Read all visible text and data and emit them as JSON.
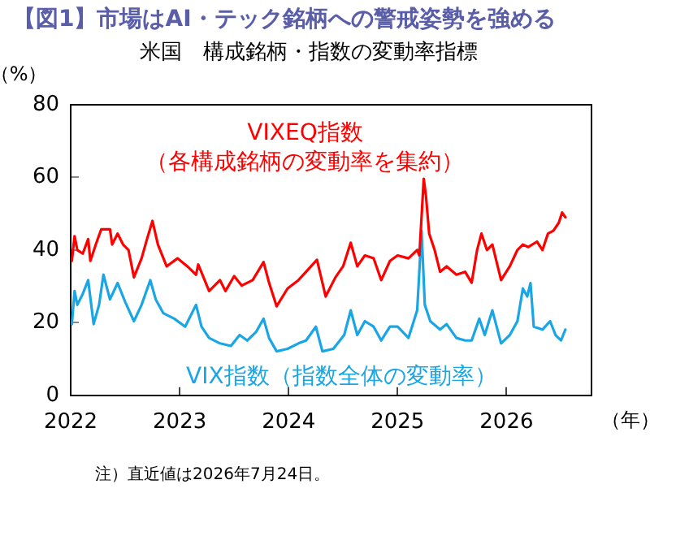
{
  "chart_data": {
    "type": "line",
    "title": "【図1】市場はAI・テック銘柄への警戒姿勢を強める",
    "subtitle": "米国　構成銘柄・指数の変動率指標",
    "ylabel": "（%）",
    "xlabel": "（年）",
    "annotations": [
      "注）直近値は2026年7月24日。"
    ],
    "xlim": [
      2022,
      2026.78
    ],
    "xticks": [
      2022,
      2023,
      2024,
      2025,
      2026
    ],
    "ylim": [
      0,
      80
    ],
    "yticks": [
      0,
      20,
      40,
      60,
      80
    ],
    "grid": false,
    "legend": false,
    "marker": "none",
    "line_style": "solid",
    "series": [
      {
        "name": "VIXEQ指数（各構成銘柄の変動率を集約）",
        "color": "#ff0000",
        "x": [
          2022.01,
          2022.035,
          2022.06,
          2022.11,
          2022.16,
          2022.18,
          2022.23,
          2022.28,
          2022.36,
          2022.38,
          2022.43,
          2022.48,
          2022.53,
          2022.58,
          2022.65,
          2022.7,
          2022.75,
          2022.8,
          2022.88,
          2022.98,
          2023.07,
          2023.15,
          2023.17,
          2023.27,
          2023.37,
          2023.42,
          2023.5,
          2023.57,
          2023.67,
          2023.77,
          2023.82,
          2023.89,
          2023.99,
          2024.09,
          2024.16,
          2024.26,
          2024.34,
          2024.43,
          2024.5,
          2024.57,
          2024.63,
          2024.7,
          2024.78,
          2024.85,
          2024.93,
          2025.0,
          2025.1,
          2025.18,
          2025.2,
          2025.24,
          2025.26,
          2025.29,
          2025.34,
          2025.39,
          2025.45,
          2025.54,
          2025.62,
          2025.68,
          2025.73,
          2025.77,
          2025.82,
          2025.87,
          2025.95,
          2026.03,
          2026.1,
          2026.15,
          2026.2,
          2026.28,
          2026.33,
          2026.38,
          2026.43,
          2026.48,
          2026.51,
          2026.54
        ],
        "values": [
          37,
          43.8,
          40,
          39,
          43,
          37,
          41.5,
          45.7,
          45.7,
          41.5,
          44.5,
          41.5,
          40,
          32.5,
          37.7,
          43,
          48,
          41.5,
          35.5,
          37.7,
          35.5,
          33.2,
          36,
          28.7,
          31.7,
          28.7,
          32.8,
          30.2,
          31.7,
          36.7,
          31,
          24.5,
          29.4,
          31.7,
          34,
          37.3,
          27.2,
          32.5,
          35.5,
          42,
          35.5,
          38.5,
          37.7,
          31.7,
          37,
          38.5,
          37.7,
          40,
          38.5,
          59.6,
          55,
          44.5,
          40,
          34,
          35.5,
          33.2,
          34,
          31,
          40,
          44.5,
          40,
          41.5,
          31.7,
          35.5,
          40,
          41.5,
          40.8,
          42.3,
          40,
          44.5,
          45.3,
          47.5,
          50.3,
          49
        ]
      },
      {
        "name": "VIX指数（指数全体の変動率）",
        "color": "#1aa6e4",
        "x": [
          2022.01,
          2022.035,
          2022.06,
          2022.11,
          2022.16,
          2022.21,
          2022.26,
          2022.3,
          2022.36,
          2022.43,
          2022.5,
          2022.58,
          2022.65,
          2022.73,
          2022.78,
          2022.85,
          2022.95,
          2023.05,
          2023.15,
          2023.2,
          2023.27,
          2023.37,
          2023.47,
          2023.55,
          2023.62,
          2023.7,
          2023.77,
          2023.82,
          2023.89,
          2023.99,
          2024.09,
          2024.16,
          2024.25,
          2024.31,
          2024.41,
          2024.51,
          2024.57,
          2024.63,
          2024.7,
          2024.78,
          2024.85,
          2024.93,
          2025.0,
          2025.1,
          2025.18,
          2025.22,
          2025.25,
          2025.3,
          2025.39,
          2025.45,
          2025.54,
          2025.62,
          2025.68,
          2025.75,
          2025.8,
          2025.87,
          2025.95,
          2026.03,
          2026.1,
          2026.15,
          2026.19,
          2026.22,
          2026.25,
          2026.33,
          2026.4,
          2026.45,
          2026.5,
          2026.54
        ],
        "values": [
          19.6,
          28.7,
          24.9,
          27.9,
          31.7,
          19.6,
          24.9,
          33.2,
          26.4,
          30.9,
          25.7,
          20.4,
          24.9,
          31.7,
          26.4,
          22.6,
          21.1,
          18.9,
          24.9,
          18.9,
          15.8,
          14.3,
          13.6,
          16.6,
          15.1,
          17.4,
          21.1,
          15.8,
          12.1,
          12.8,
          14.3,
          15.1,
          18.9,
          12.1,
          12.8,
          16.6,
          23.4,
          16.6,
          20.4,
          18.9,
          15.1,
          18.9,
          18.9,
          15.8,
          23.4,
          45.3,
          24.9,
          20.4,
          18.1,
          19.6,
          15.8,
          15.1,
          15.1,
          21.1,
          16.6,
          23.4,
          14.3,
          16.6,
          20.4,
          29.4,
          27.2,
          30.9,
          18.9,
          18.1,
          20.4,
          16.6,
          15.1,
          18.1
        ]
      }
    ]
  }
}
